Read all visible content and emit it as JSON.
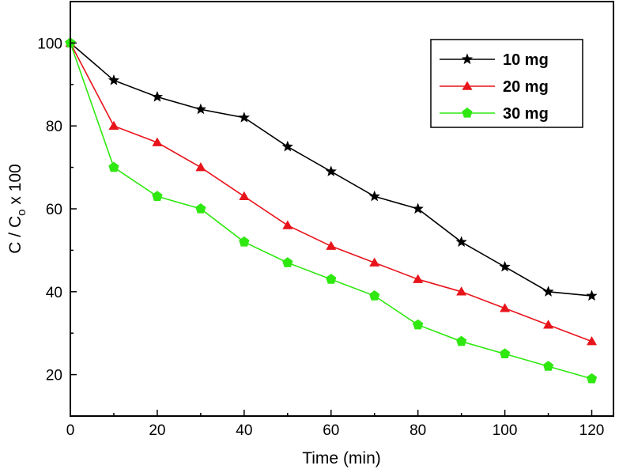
{
  "chart_data": {
    "type": "line",
    "title": "",
    "xlabel": "Time (min)",
    "ylabel_main": "C / C",
    "ylabel_sub": "o",
    "ylabel_tail": " x 100",
    "xlim": [
      0,
      125
    ],
    "ylim": [
      10,
      110
    ],
    "xticks": [
      0,
      20,
      40,
      60,
      80,
      100,
      120
    ],
    "yticks": [
      20,
      40,
      60,
      80,
      100
    ],
    "x": [
      0,
      10,
      20,
      30,
      40,
      50,
      60,
      70,
      80,
      90,
      100,
      110,
      120
    ],
    "legend_position": "top-right",
    "series": [
      {
        "name": "10 mg",
        "color": "#000000",
        "marker": "star",
        "values": [
          100,
          91,
          87,
          84,
          82,
          75,
          69,
          63,
          60,
          52,
          46,
          40,
          39
        ]
      },
      {
        "name": "20 mg",
        "color": "#e8141b",
        "marker": "triangle",
        "values": [
          100,
          80,
          76,
          70,
          63,
          56,
          51,
          47,
          43,
          40,
          36,
          32,
          28
        ]
      },
      {
        "name": "30 mg",
        "color": "#2ee80f",
        "marker": "pentagon",
        "values": [
          100,
          70,
          63,
          60,
          52,
          47,
          43,
          39,
          32,
          28,
          25,
          22,
          19
        ]
      }
    ]
  }
}
